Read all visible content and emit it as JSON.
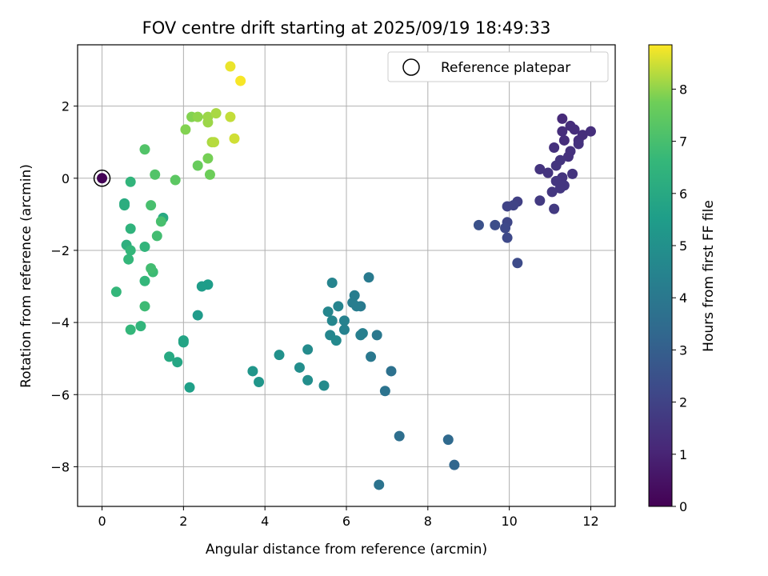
{
  "chart_data": {
    "type": "scatter",
    "title": "FOV centre drift starting at 2025/09/19 18:49:33",
    "xlabel": "Angular distance from reference (arcmin)",
    "ylabel": "Rotation from reference (arcmin)",
    "xlim": [
      -0.6,
      12.6
    ],
    "ylim": [
      -9.1,
      3.7
    ],
    "xticks": [
      0,
      2,
      4,
      6,
      8,
      10,
      12
    ],
    "yticks": [
      -8,
      -6,
      -4,
      -2,
      0,
      2
    ],
    "xtick_labels": [
      "0",
      "2",
      "4",
      "6",
      "8",
      "10",
      "12"
    ],
    "ytick_labels": [
      "−8",
      "−6",
      "−4",
      "−2",
      "0",
      "2"
    ],
    "grid": true,
    "legend": {
      "label": "Reference platepar",
      "position": "top-right",
      "marker": "open-circle"
    },
    "colorbar": {
      "label": "Hours from first FF file",
      "colormap": "viridis",
      "range": [
        0,
        8.85
      ],
      "ticks": [
        0,
        1,
        2,
        3,
        4,
        5,
        6,
        7,
        8
      ],
      "tick_labels": [
        "0",
        "1",
        "2",
        "3",
        "4",
        "5",
        "6",
        "7",
        "8"
      ]
    },
    "reference": {
      "x": 0,
      "y": 0
    },
    "points": [
      {
        "x": 0.0,
        "y": 0.0,
        "c": 0.05
      },
      {
        "x": 11.3,
        "y": 1.65,
        "c": 1.2
      },
      {
        "x": 11.5,
        "y": 1.45,
        "c": 1.3
      },
      {
        "x": 11.6,
        "y": 1.35,
        "c": 1.3
      },
      {
        "x": 12.0,
        "y": 1.3,
        "c": 1.35
      },
      {
        "x": 11.3,
        "y": 1.3,
        "c": 1.3
      },
      {
        "x": 11.8,
        "y": 1.2,
        "c": 1.3
      },
      {
        "x": 11.7,
        "y": 1.05,
        "c": 1.3
      },
      {
        "x": 11.35,
        "y": 1.05,
        "c": 1.3
      },
      {
        "x": 11.7,
        "y": 0.95,
        "c": 1.4
      },
      {
        "x": 11.1,
        "y": 0.85,
        "c": 1.4
      },
      {
        "x": 11.5,
        "y": 0.75,
        "c": 1.4
      },
      {
        "x": 11.45,
        "y": 0.6,
        "c": 1.4
      },
      {
        "x": 11.25,
        "y": 0.5,
        "c": 1.5
      },
      {
        "x": 11.15,
        "y": 0.35,
        "c": 1.5
      },
      {
        "x": 10.75,
        "y": 0.25,
        "c": 1.5
      },
      {
        "x": 10.95,
        "y": 0.15,
        "c": 1.5
      },
      {
        "x": 11.55,
        "y": 0.12,
        "c": 1.5
      },
      {
        "x": 11.3,
        "y": 0.02,
        "c": 1.5
      },
      {
        "x": 11.15,
        "y": -0.08,
        "c": 1.6
      },
      {
        "x": 11.35,
        "y": -0.2,
        "c": 1.6
      },
      {
        "x": 11.25,
        "y": -0.28,
        "c": 1.6
      },
      {
        "x": 11.05,
        "y": -0.38,
        "c": 1.6
      },
      {
        "x": 10.75,
        "y": -0.62,
        "c": 1.7
      },
      {
        "x": 10.2,
        "y": -0.65,
        "c": 1.9
      },
      {
        "x": 9.95,
        "y": -0.78,
        "c": 2.0
      },
      {
        "x": 10.1,
        "y": -0.75,
        "c": 2.0
      },
      {
        "x": 11.1,
        "y": -0.85,
        "c": 1.7
      },
      {
        "x": 9.95,
        "y": -1.22,
        "c": 2.1
      },
      {
        "x": 9.9,
        "y": -1.38,
        "c": 2.2
      },
      {
        "x": 9.65,
        "y": -1.3,
        "c": 2.4
      },
      {
        "x": 9.25,
        "y": -1.3,
        "c": 2.5
      },
      {
        "x": 9.95,
        "y": -1.65,
        "c": 2.2
      },
      {
        "x": 10.2,
        "y": -2.35,
        "c": 2.3
      },
      {
        "x": 8.65,
        "y": -7.95,
        "c": 3.3
      },
      {
        "x": 8.5,
        "y": -7.25,
        "c": 3.4
      },
      {
        "x": 7.3,
        "y": -7.15,
        "c": 3.6
      },
      {
        "x": 6.8,
        "y": -8.5,
        "c": 3.8
      },
      {
        "x": 7.1,
        "y": -5.35,
        "c": 3.7
      },
      {
        "x": 6.95,
        "y": -5.9,
        "c": 3.8
      },
      {
        "x": 6.6,
        "y": -4.95,
        "c": 4.0
      },
      {
        "x": 6.75,
        "y": -4.35,
        "c": 4.0
      },
      {
        "x": 6.55,
        "y": -2.75,
        "c": 4.1
      },
      {
        "x": 6.35,
        "y": -3.55,
        "c": 4.1
      },
      {
        "x": 6.2,
        "y": -3.25,
        "c": 4.2
      },
      {
        "x": 6.25,
        "y": -3.55,
        "c": 4.2
      },
      {
        "x": 6.15,
        "y": -3.45,
        "c": 4.2
      },
      {
        "x": 6.4,
        "y": -4.3,
        "c": 4.3
      },
      {
        "x": 6.35,
        "y": -4.35,
        "c": 4.3
      },
      {
        "x": 5.95,
        "y": -3.95,
        "c": 4.4
      },
      {
        "x": 5.95,
        "y": -4.2,
        "c": 4.4
      },
      {
        "x": 5.8,
        "y": -3.55,
        "c": 4.5
      },
      {
        "x": 5.65,
        "y": -2.9,
        "c": 4.5
      },
      {
        "x": 5.55,
        "y": -3.7,
        "c": 4.6
      },
      {
        "x": 5.65,
        "y": -3.95,
        "c": 4.6
      },
      {
        "x": 5.6,
        "y": -4.35,
        "c": 4.6
      },
      {
        "x": 5.75,
        "y": -4.5,
        "c": 4.7
      },
      {
        "x": 5.05,
        "y": -4.75,
        "c": 4.8
      },
      {
        "x": 4.85,
        "y": -5.25,
        "c": 4.9
      },
      {
        "x": 5.05,
        "y": -5.6,
        "c": 4.9
      },
      {
        "x": 5.45,
        "y": -5.75,
        "c": 4.8
      },
      {
        "x": 4.35,
        "y": -4.9,
        "c": 5.0
      },
      {
        "x": 3.85,
        "y": -5.65,
        "c": 5.2
      },
      {
        "x": 3.7,
        "y": -5.35,
        "c": 5.2
      },
      {
        "x": 2.6,
        "y": -2.95,
        "c": 5.5
      },
      {
        "x": 2.45,
        "y": -3.0,
        "c": 5.5
      },
      {
        "x": 2.35,
        "y": -3.8,
        "c": 5.4
      },
      {
        "x": 2.15,
        "y": -5.8,
        "c": 5.6
      },
      {
        "x": 2.0,
        "y": -4.5,
        "c": 5.8
      },
      {
        "x": 2.0,
        "y": -4.55,
        "c": 5.8
      },
      {
        "x": 1.65,
        "y": -4.95,
        "c": 6.0
      },
      {
        "x": 1.85,
        "y": -5.1,
        "c": 5.9
      },
      {
        "x": 1.5,
        "y": -1.1,
        "c": 6.0
      },
      {
        "x": 0.55,
        "y": -0.7,
        "c": 6.1
      },
      {
        "x": 0.55,
        "y": -0.75,
        "c": 6.2
      },
      {
        "x": 0.6,
        "y": -1.85,
        "c": 6.3
      },
      {
        "x": 0.7,
        "y": -1.4,
        "c": 6.4
      },
      {
        "x": 0.65,
        "y": -2.25,
        "c": 6.6
      },
      {
        "x": 0.7,
        "y": -2.0,
        "c": 6.6
      },
      {
        "x": 0.7,
        "y": -0.1,
        "c": 6.5
      },
      {
        "x": 1.05,
        "y": -1.9,
        "c": 6.5
      },
      {
        "x": 1.05,
        "y": -2.85,
        "c": 6.6
      },
      {
        "x": 0.35,
        "y": -3.15,
        "c": 6.6
      },
      {
        "x": 0.95,
        "y": -4.1,
        "c": 6.5
      },
      {
        "x": 0.7,
        "y": -4.2,
        "c": 6.6
      },
      {
        "x": 1.05,
        "y": -3.55,
        "c": 6.8
      },
      {
        "x": 1.25,
        "y": -2.6,
        "c": 6.8
      },
      {
        "x": 1.2,
        "y": -2.5,
        "c": 6.9
      },
      {
        "x": 1.35,
        "y": -1.6,
        "c": 6.9
      },
      {
        "x": 1.2,
        "y": -0.75,
        "c": 7.0
      },
      {
        "x": 1.45,
        "y": -1.2,
        "c": 7.0
      },
      {
        "x": 1.3,
        "y": 0.1,
        "c": 7.2
      },
      {
        "x": 1.05,
        "y": 0.8,
        "c": 7.2
      },
      {
        "x": 1.8,
        "y": -0.05,
        "c": 7.4
      },
      {
        "x": 2.35,
        "y": 0.35,
        "c": 7.6
      },
      {
        "x": 2.65,
        "y": 0.1,
        "c": 7.7
      },
      {
        "x": 2.6,
        "y": 0.55,
        "c": 7.8
      },
      {
        "x": 2.05,
        "y": 1.35,
        "c": 7.9
      },
      {
        "x": 2.2,
        "y": 1.7,
        "c": 7.9
      },
      {
        "x": 2.35,
        "y": 1.7,
        "c": 8.0
      },
      {
        "x": 2.6,
        "y": 1.7,
        "c": 8.1
      },
      {
        "x": 2.6,
        "y": 1.55,
        "c": 8.1
      },
      {
        "x": 2.7,
        "y": 1.0,
        "c": 8.2
      },
      {
        "x": 2.8,
        "y": 1.8,
        "c": 8.2
      },
      {
        "x": 2.75,
        "y": 1.0,
        "c": 8.3
      },
      {
        "x": 3.15,
        "y": 1.7,
        "c": 8.4
      },
      {
        "x": 3.25,
        "y": 1.1,
        "c": 8.5
      },
      {
        "x": 3.15,
        "y": 3.1,
        "c": 8.7
      },
      {
        "x": 3.4,
        "y": 2.7,
        "c": 8.8
      }
    ]
  }
}
